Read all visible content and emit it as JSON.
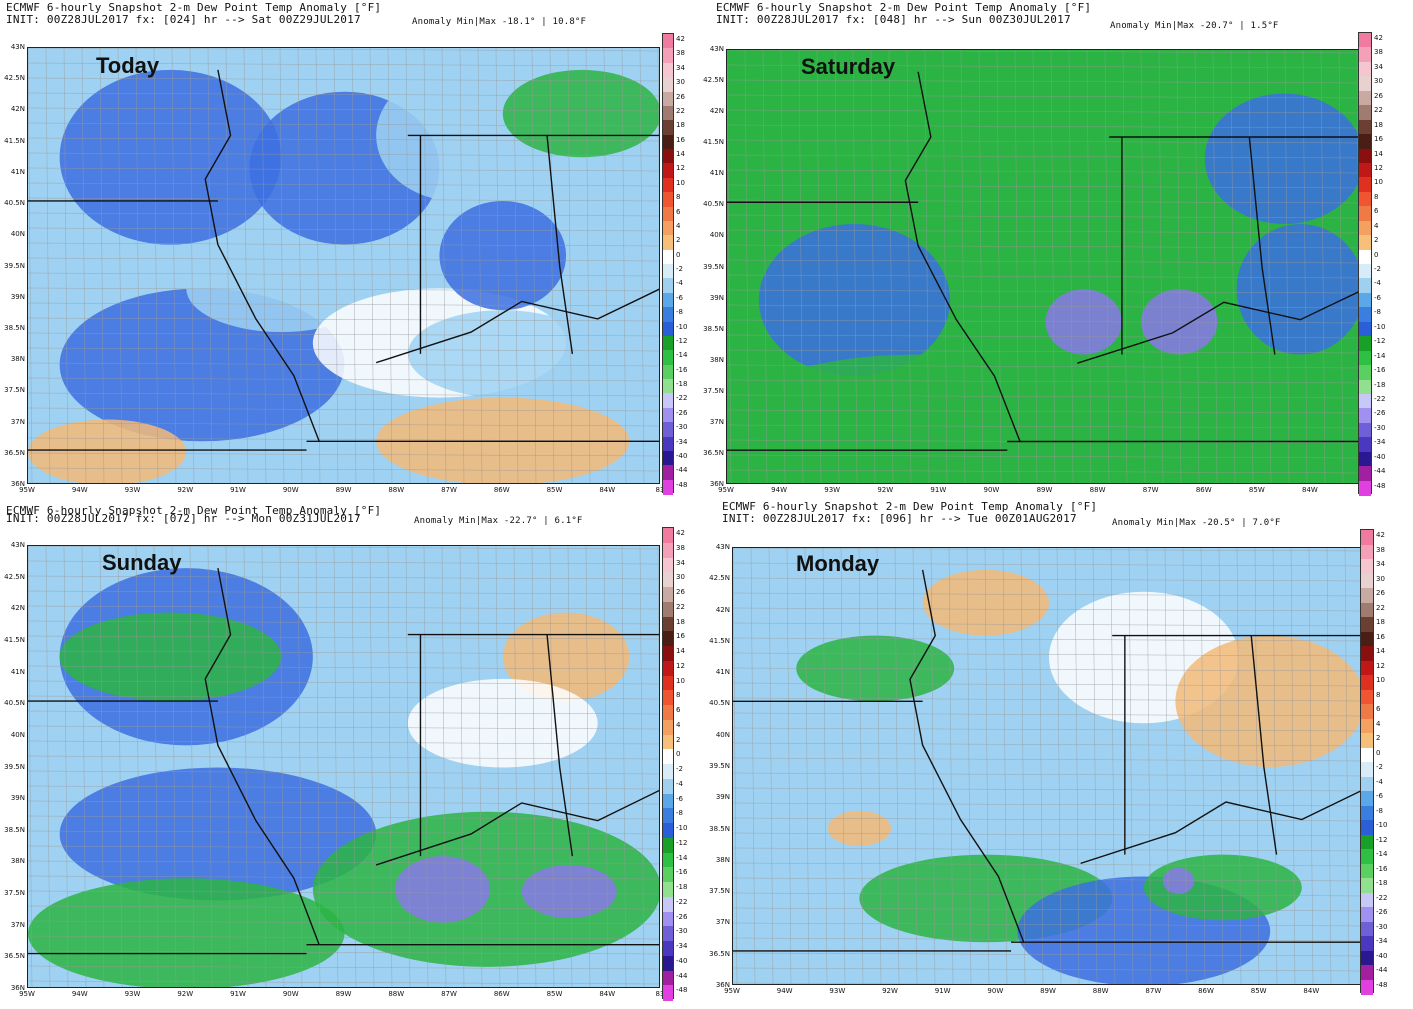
{
  "panels": [
    {
      "title": "ECMWF 6-hourly Snapshot 2-m Dew Point Temp Anomaly [°F]",
      "init": "INIT: 00Z28JUL2017 fx: [024] hr --> Sat 00Z29JUL2017",
      "anomaly": "Anomaly Min|Max -18.1° | 10.8°F",
      "day_label": "Today",
      "dominant": [
        "blue",
        "lightblue",
        "white",
        "orange"
      ]
    },
    {
      "title": "ECMWF 6-hourly Snapshot 2-m Dew Point Temp Anomaly [°F]",
      "init": "INIT: 00Z28JUL2017 fx: [048] hr --> Sun 00Z30JUL2017",
      "anomaly": "Anomaly Min|Max -20.7° | 1.5°F",
      "day_label": "Saturday",
      "dominant": [
        "green",
        "blue",
        "purple"
      ]
    },
    {
      "title": "ECMWF 6-hourly Snapshot 2-m Dew Point Temp Anomaly [°F]",
      "init": "INIT: 00Z28JUL2017 fx: [072] hr --> Mon 00Z31JUL2017",
      "anomaly": "Anomaly Min|Max -22.7° | 6.1°F",
      "day_label": "Sunday",
      "dominant": [
        "blue",
        "green",
        "white",
        "orange",
        "purple"
      ]
    },
    {
      "title": "ECMWF 6-hourly Snapshot 2-m Dew Point Temp Anomaly [°F]",
      "init": "INIT: 00Z28JUL2017 fx: [096] hr --> Tue 00Z01AUG2017",
      "anomaly": "Anomaly Min|Max -20.5° | 7.0°F",
      "day_label": "Monday",
      "dominant": [
        "lightblue",
        "blue",
        "orange",
        "green"
      ]
    }
  ],
  "lat_labels": [
    "43N",
    "42.5N",
    "42N",
    "41.5N",
    "41N",
    "40.5N",
    "40N",
    "39.5N",
    "39N",
    "38.5N",
    "38N",
    "37.5N",
    "37N",
    "36.5N",
    "36N"
  ],
  "lon_labels": [
    "95W",
    "94W",
    "93W",
    "92W",
    "91W",
    "90W",
    "89W",
    "88W",
    "87W",
    "86W",
    "85W",
    "84W",
    "83"
  ],
  "colorbar": {
    "labels": [
      "42",
      "38",
      "34",
      "30",
      "26",
      "22",
      "18",
      "16",
      "14",
      "12",
      "10",
      "8",
      "6",
      "4",
      "2",
      "0",
      "-2",
      "-4",
      "-6",
      "-8",
      "-10",
      "-12",
      "-14",
      "-16",
      "-18",
      "-22",
      "-26",
      "-30",
      "-34",
      "-40",
      "-44",
      "-48"
    ],
    "colors": [
      "#f07aa0",
      "#f3a0b8",
      "#f5c5d0",
      "#e8d2cf",
      "#c8aaa2",
      "#a07b70",
      "#6b3f32",
      "#4a1e15",
      "#8a1010",
      "#c01818",
      "#e03020",
      "#ee5530",
      "#f07a45",
      "#f4a060",
      "#f6c07a",
      "#ffffff",
      "#d8ecf8",
      "#9fd0f0",
      "#5aa8e8",
      "#3a7fe0",
      "#2a5fd8",
      "#18a028",
      "#2ec042",
      "#5ad060",
      "#90e090",
      "#c8c8f8",
      "#a090f0",
      "#7060d8",
      "#4a38c0",
      "#2a1890",
      "#a020a0",
      "#e040e0"
    ]
  },
  "colors": {
    "blue": "#3c6fe0",
    "lightblue": "#9fd2f2",
    "white": "#ffffff",
    "orange": "#f3ba78",
    "green": "#2bb443",
    "purple": "#8a78e8"
  }
}
